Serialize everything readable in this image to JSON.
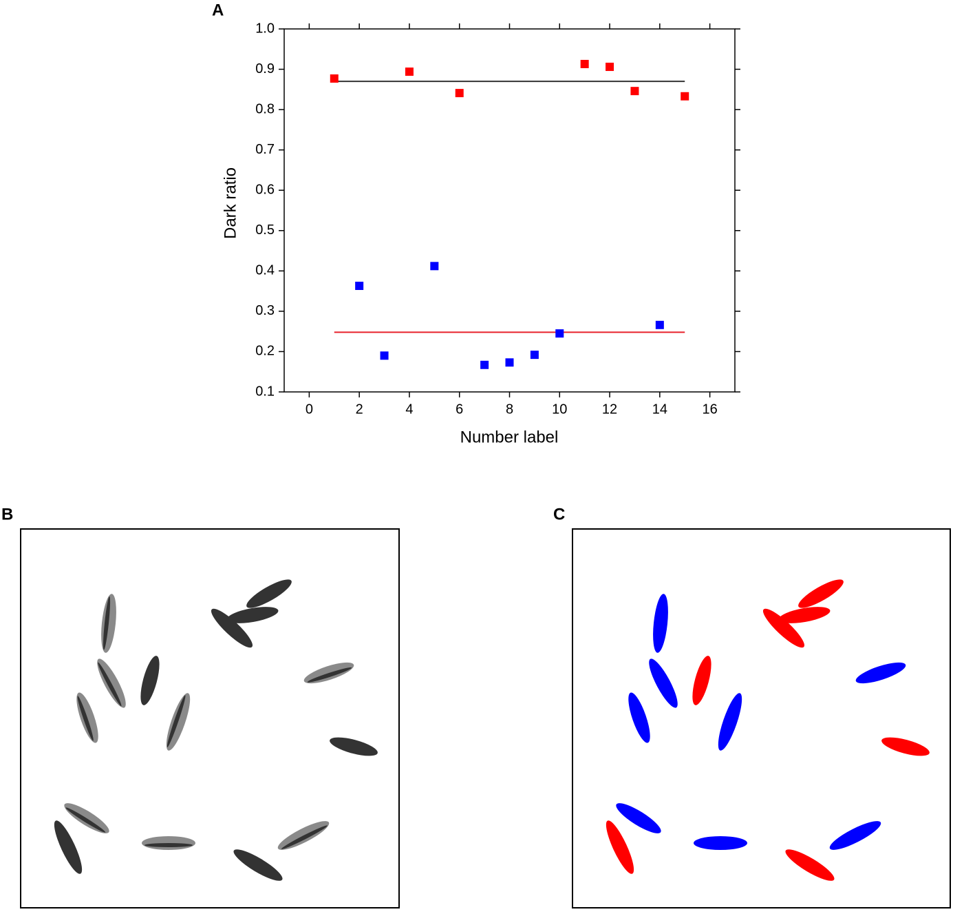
{
  "panel_labels": [
    "A",
    "B",
    "C"
  ],
  "chart_data": {
    "type": "scatter",
    "xlabel": "Number label",
    "ylabel": "Dark ratio",
    "xlim": [
      -1,
      17
    ],
    "ylim": [
      0.1,
      1.0
    ],
    "xticks": [
      0,
      2,
      4,
      6,
      8,
      10,
      12,
      14,
      16
    ],
    "yticks": [
      0.1,
      0.2,
      0.3,
      0.4,
      0.5,
      0.6,
      0.7,
      0.8,
      0.9,
      {
        "value": 1,
        "label": "1.0"
      }
    ],
    "series": [
      {
        "color": "#ff0000",
        "x": [
          1,
          4,
          6,
          11,
          12,
          13,
          15
        ],
        "values": [
          0.877,
          0.894,
          0.841,
          0.913,
          0.906,
          0.846,
          0.833
        ]
      },
      {
        "color": "#0000ff",
        "x": [
          2,
          3,
          5,
          7,
          8,
          9,
          10,
          14
        ],
        "values": [
          0.363,
          0.19,
          0.412,
          0.167,
          0.173,
          0.192,
          0.245,
          0.266
        ]
      }
    ],
    "lines": [
      {
        "color": "#333333",
        "x": [
          1,
          15
        ],
        "value": 0.87
      },
      {
        "color": "#e8202a",
        "x": [
          1,
          15
        ],
        "value": 0.248
      }
    ]
  }
}
